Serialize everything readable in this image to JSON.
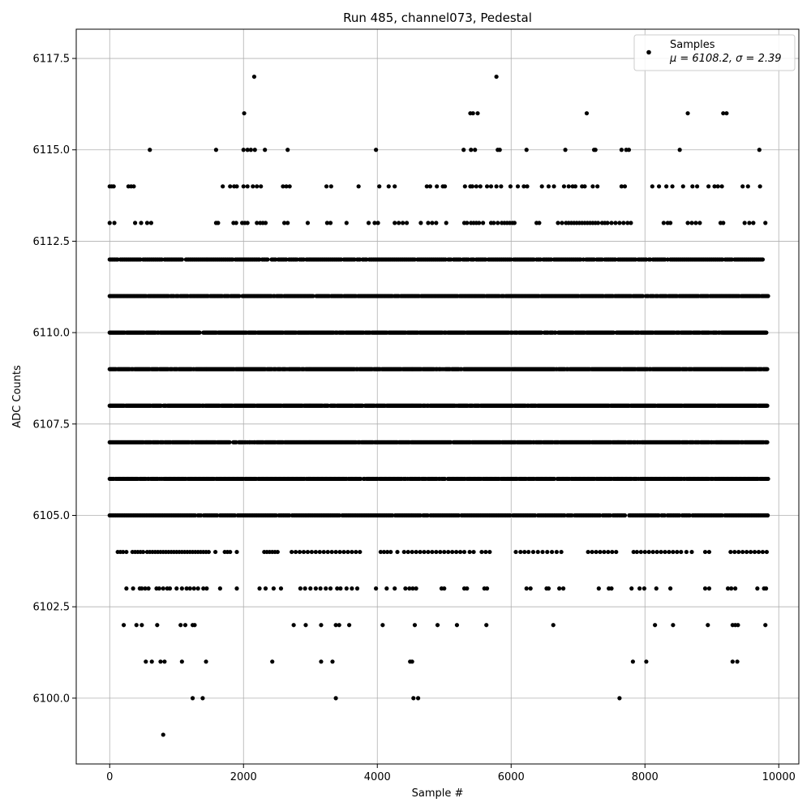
{
  "chart_data": {
    "type": "scatter",
    "title": "Run 485, channel073, Pedestal",
    "xlabel": "Sample #",
    "ylabel": "ADC Counts",
    "xlim": [
      -500,
      10300
    ],
    "ylim": [
      6098.2,
      6118.3
    ],
    "xticks": [
      0,
      2000,
      4000,
      6000,
      8000,
      10000
    ],
    "xtick_labels": [
      "0",
      "2000",
      "4000",
      "6000",
      "8000",
      "10000"
    ],
    "yticks": [
      6100.0,
      6102.5,
      6105.0,
      6107.5,
      6110.0,
      6112.5,
      6115.0,
      6117.5
    ],
    "ytick_labels": [
      "6100.0",
      "6102.5",
      "6105.0",
      "6107.5",
      "6110.0",
      "6112.5",
      "6115.0",
      "6117.5"
    ],
    "grid": true,
    "legend_position": "top-right",
    "marker_color": "#000000",
    "series": [
      {
        "name": "Samples",
        "legend_stats": "μ = 6108.2, σ = 2.39",
        "n_samples": 9840,
        "mean": 6108.2,
        "sigma": 2.39,
        "levels": [
          {
            "y": 6099,
            "x": [
              800
            ]
          },
          {
            "y": 6100,
            "x": [
              1240,
              1390,
              3380,
              4540,
              4610,
              7620
            ]
          },
          {
            "y": 6101,
            "x": [
              540,
              630,
              760,
              820,
              1080,
              1440,
              2430,
              3160,
              3330,
              4490,
              4520,
              7820,
              8020,
              9310,
              9380
            ]
          },
          {
            "y": 6102,
            "x": [
              210,
              400,
              480,
              710,
              1060,
              1130,
              1240,
              1270,
              2750,
              2930,
              3160,
              3380,
              3430,
              3580,
              4080,
              4560,
              4900,
              5190,
              5630,
              6630,
              8150,
              8420,
              8940,
              9310,
              9350,
              9390,
              9800
            ]
          },
          {
            "y": 6103,
            "x": [
              250,
              350,
              450,
              480,
              530,
              580,
              700,
              740,
              800,
              860,
              900,
              1000,
              1080,
              1150,
              1200,
              1260,
              1320,
              1400,
              1450,
              1650,
              1900,
              2240,
              2330,
              2450,
              2560,
              2850,
              2920,
              3000,
              3080,
              3150,
              3230,
              3300,
              3400,
              3450,
              3540,
              3620,
              3700,
              3980,
              4140,
              4260,
              4420,
              4480,
              4530,
              4580,
              4960,
              5000,
              5300,
              5340,
              5600,
              5640,
              6230,
              6290,
              6530,
              6560,
              6720,
              6780,
              7310,
              7460,
              7500,
              7800,
              7920,
              7990,
              8170,
              8380,
              8900,
              8960,
              9240,
              9290,
              9350,
              9680,
              9780,
              9810
            ]
          },
          {
            "y": 6104,
            "x": [
              120,
              160,
              200,
              250,
              340,
              380,
              420,
              460,
              500,
              560,
              600,
              640,
              680,
              720,
              760,
              800,
              840,
              880,
              920,
              960,
              1000,
              1040,
              1080,
              1120,
              1160,
              1200,
              1240,
              1280,
              1320,
              1360,
              1400,
              1440,
              1480,
              1580,
              1720,
              1760,
              1800,
              1900,
              2310,
              2350,
              2390,
              2430,
              2470,
              2510,
              2720,
              2780,
              2840,
              2900,
              2960,
              3020,
              3080,
              3140,
              3200,
              3260,
              3320,
              3380,
              3440,
              3500,
              3560,
              3620,
              3680,
              3740,
              4050,
              4100,
              4150,
              4200,
              4300,
              4400,
              4460,
              4520,
              4580,
              4640,
              4700,
              4760,
              4820,
              4880,
              4940,
              5000,
              5060,
              5120,
              5180,
              5240,
              5300,
              5380,
              5440,
              5560,
              5620,
              5680,
              6070,
              6140,
              6200,
              6260,
              6330,
              6400,
              6470,
              6540,
              6610,
              6680,
              6750,
              7150,
              7210,
              7270,
              7330,
              7390,
              7450,
              7510,
              7570,
              7830,
              7880,
              7940,
              8000,
              8060,
              8120,
              8180,
              8240,
              8300,
              8360,
              8420,
              8480,
              8540,
              8620,
              8700,
              8900,
              8960,
              9280,
              9340,
              9400,
              9460,
              9520,
              9580,
              9640,
              9700,
              9760,
              9820
            ]
          },
          {
            "y": 6105,
            "xs": [
              0,
              9840,
              22
            ]
          },
          {
            "y": 6106,
            "xs": [
              0,
              9840,
              15
            ]
          },
          {
            "y": 6107,
            "xs": [
              0,
              9840,
              14
            ]
          },
          {
            "y": 6108,
            "xs": [
              0,
              9840,
              12
            ]
          },
          {
            "y": 6109,
            "xs": [
              0,
              9840,
              12
            ]
          },
          {
            "y": 6110,
            "xs": [
              0,
              9840,
              14
            ]
          },
          {
            "y": 6111,
            "xs": [
              0,
              9840,
              16
            ]
          },
          {
            "y": 6112,
            "xs": [
              0,
              9760,
              20
            ]
          },
          {
            "y": 6113,
            "x": [
              0,
              70,
              380,
              470,
              560,
              620,
              1590,
              1620,
              1850,
              1890,
              1980,
              2020,
              2060,
              2200,
              2250,
              2290,
              2330,
              2610,
              2660,
              2960,
              3250,
              3300,
              3540,
              3870,
              3960,
              4010,
              4260,
              4320,
              4380,
              4440,
              4650,
              4760,
              4820,
              4880,
              5030,
              5400,
              5300,
              5340,
              5440,
              5480,
              5520,
              5580,
              5700,
              5740,
              5800,
              5860,
              5900,
              5940,
              5980,
              6020,
              6050,
              6380,
              6420,
              6700,
              6760,
              6820,
              6860,
              6900,
              6940,
              6980,
              7020,
              7060,
              7100,
              7140,
              7180,
              7220,
              7260,
              7300,
              7360,
              7400,
              7440,
              7500,
              7560,
              7620,
              7680,
              7740,
              7790,
              8280,
              8340,
              8380,
              8640,
              8700,
              8760,
              8820,
              9130,
              9170,
              9490,
              9560,
              9620,
              9800
            ]
          },
          {
            "y": 6114,
            "x": [
              0,
              30,
              60,
              280,
              320,
              360,
              1690,
              1800,
              1860,
              1900,
              2000,
              2060,
              2140,
              2200,
              2260,
              2590,
              2640,
              2690,
              3240,
              3310,
              3720,
              4030,
              4170,
              4260,
              4740,
              4790,
              4890,
              4980,
              5010,
              5310,
              5390,
              5420,
              5480,
              5540,
              5640,
              5700,
              5780,
              5850,
              5990,
              6100,
              6190,
              6240,
              6460,
              6560,
              6640,
              6790,
              6860,
              6920,
              6960,
              7060,
              7100,
              7220,
              7290,
              7650,
              7700,
              8110,
              8210,
              8320,
              8410,
              8570,
              8710,
              8780,
              8950,
              9040,
              9090,
              9150,
              9460,
              9540,
              9720
            ]
          },
          {
            "y": 6115,
            "x": [
              600,
              1590,
              2000,
              2060,
              2110,
              2170,
              2320,
              2660,
              3980,
              5290,
              5400,
              5460,
              5800,
              5830,
              6230,
              6810,
              7240,
              7260,
              7650,
              7720,
              7760,
              8520,
              9710
            ]
          },
          {
            "y": 6116,
            "x": [
              2010,
              5390,
              5430,
              5500,
              7130,
              8640,
              9170,
              9220
            ]
          },
          {
            "y": 6117,
            "x": [
              2160,
              5780
            ]
          }
        ]
      }
    ]
  }
}
